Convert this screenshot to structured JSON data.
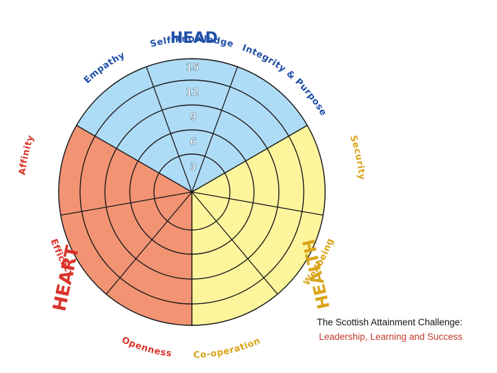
{
  "colors": {
    "head": "#aedcf6",
    "heart": "#f29474",
    "health": "#fdf59c",
    "head_text": "#1f4fa8",
    "heart_text": "#d9342b",
    "health_text": "#d9a418",
    "line": "#1a1a1a"
  },
  "sections": {
    "head": "HEAD",
    "heart": "HEART",
    "health": "HEALTH"
  },
  "segments": {
    "self_knowledge": "Self-knowledge",
    "integrity": "Integrity & Purpose",
    "empathy": "Empathy",
    "affinity": "Affinity",
    "efficacy": "Efficacy",
    "openness": "Openness",
    "cooperation": "Co-operation",
    "wellbeing": "Wellbeing",
    "security": "Security"
  },
  "scale": [
    "3",
    "6",
    "9",
    "12",
    "15"
  ],
  "caption": {
    "line1": "The Scottish Attainment Challenge:",
    "line2": "Leadership, Learning and Success"
  }
}
